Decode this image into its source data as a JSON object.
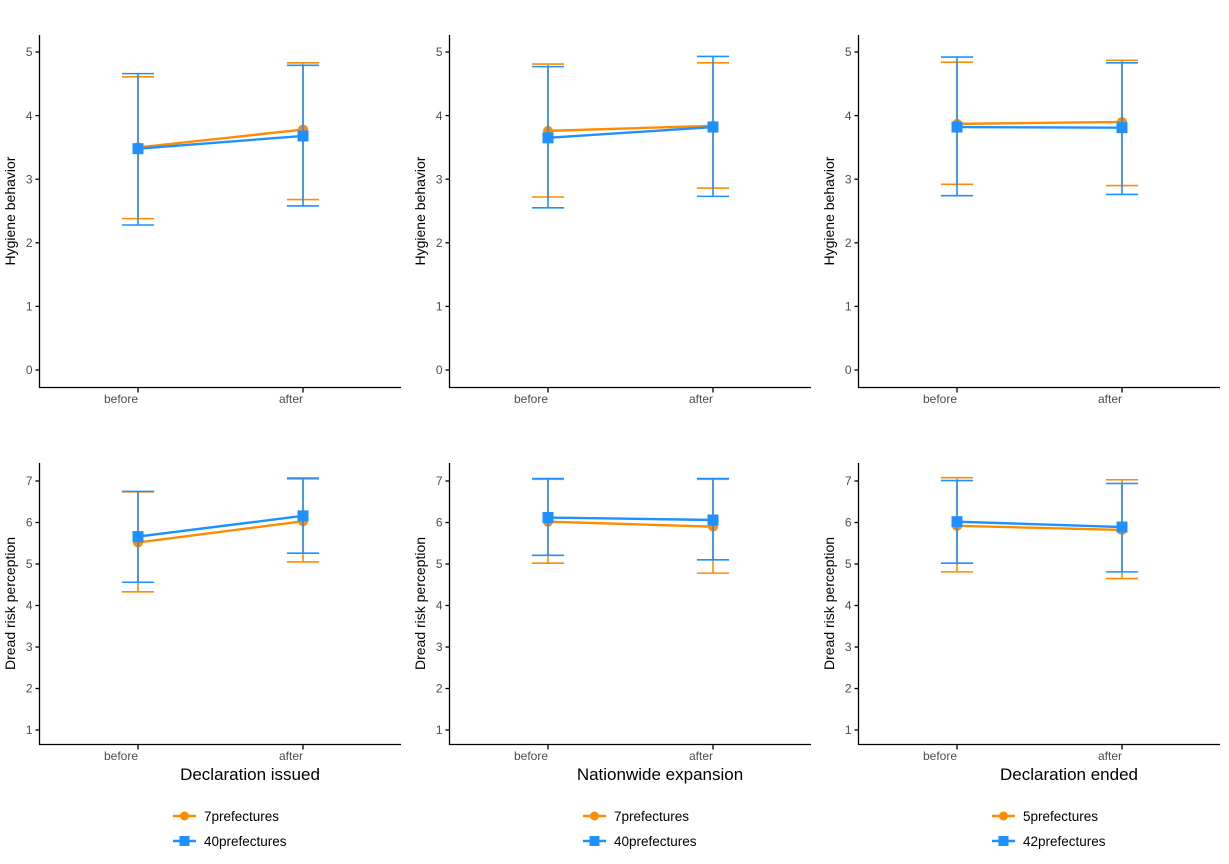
{
  "figure": {
    "background": "#FFFFFF",
    "axis_color": "#000000",
    "tick_label_color": "#4D4D4D",
    "series_colors": {
      "orange": "#FF8C00",
      "blue": "#1E90FF"
    }
  },
  "chart_data": [
    {
      "id": "hygiene-declaration-issued",
      "type": "line",
      "row": 0,
      "col": 0,
      "title": "",
      "xlabel": "",
      "ylabel": "Hygiene behavior",
      "categories": [
        "before",
        "after"
      ],
      "yticks": [
        0,
        1,
        2,
        3,
        4,
        5
      ],
      "ylim": [
        -0.27,
        5.27
      ],
      "grid": false,
      "error_bars": true,
      "show_legend": false,
      "series": [
        {
          "name": "7prefectures",
          "color": "#FF8C00",
          "marker": "circle",
          "values": [
            3.5,
            3.78
          ],
          "ci_low": [
            2.38,
            2.68
          ],
          "ci_high": [
            4.61,
            4.83
          ]
        },
        {
          "name": "40prefectures",
          "color": "#1E90FF",
          "marker": "square",
          "values": [
            3.48,
            3.68
          ],
          "ci_low": [
            2.28,
            2.58
          ],
          "ci_high": [
            4.66,
            4.79
          ]
        }
      ]
    },
    {
      "id": "hygiene-nationwide-expansion",
      "type": "line",
      "row": 0,
      "col": 1,
      "title": "",
      "xlabel": "",
      "ylabel": "Hygiene behavior",
      "categories": [
        "before",
        "after"
      ],
      "yticks": [
        0,
        1,
        2,
        3,
        4,
        5
      ],
      "ylim": [
        -0.27,
        5.27
      ],
      "grid": false,
      "error_bars": true,
      "show_legend": false,
      "series": [
        {
          "name": "7prefectures",
          "color": "#FF8C00",
          "marker": "circle",
          "values": [
            3.76,
            3.84
          ],
          "ci_low": [
            2.72,
            2.86
          ],
          "ci_high": [
            4.81,
            4.83
          ]
        },
        {
          "name": "40prefectures",
          "color": "#1E90FF",
          "marker": "square",
          "values": [
            3.65,
            3.82
          ],
          "ci_low": [
            2.55,
            2.73
          ],
          "ci_high": [
            4.77,
            4.93
          ]
        }
      ]
    },
    {
      "id": "hygiene-declaration-ended",
      "type": "line",
      "row": 0,
      "col": 2,
      "title": "",
      "xlabel": "",
      "ylabel": "Hygiene behavior",
      "categories": [
        "before",
        "after"
      ],
      "yticks": [
        0,
        1,
        2,
        3,
        4,
        5
      ],
      "ylim": [
        -0.27,
        5.27
      ],
      "grid": false,
      "error_bars": true,
      "show_legend": false,
      "series": [
        {
          "name": "5prefectures",
          "color": "#FF8C00",
          "marker": "circle",
          "values": [
            3.87,
            3.9
          ],
          "ci_low": [
            2.92,
            2.9
          ],
          "ci_high": [
            4.84,
            4.87
          ]
        },
        {
          "name": "42prefectures",
          "color": "#1E90FF",
          "marker": "square",
          "values": [
            3.82,
            3.81
          ],
          "ci_low": [
            2.74,
            2.76
          ],
          "ci_high": [
            4.92,
            4.83
          ]
        }
      ]
    },
    {
      "id": "dread-declaration-issued",
      "type": "line",
      "row": 1,
      "col": 0,
      "title": "",
      "xlabel": "Declaration issued",
      "ylabel": "Dread risk perception",
      "categories": [
        "before",
        "after"
      ],
      "yticks": [
        1,
        2,
        3,
        4,
        5,
        6,
        7
      ],
      "ylim": [
        0.66,
        7.43
      ],
      "grid": false,
      "error_bars": true,
      "show_legend": true,
      "legend_position": "bottom",
      "series": [
        {
          "name": "7prefectures",
          "color": "#FF8C00",
          "marker": "circle",
          "values": [
            5.52,
            6.03
          ],
          "ci_low": [
            4.33,
            5.05
          ],
          "ci_high": [
            6.74,
            7.05
          ]
        },
        {
          "name": "40prefectures",
          "color": "#1E90FF",
          "marker": "square",
          "values": [
            5.66,
            6.16
          ],
          "ci_low": [
            4.56,
            5.26
          ],
          "ci_high": [
            6.75,
            7.07
          ]
        }
      ]
    },
    {
      "id": "dread-nationwide-expansion",
      "type": "line",
      "row": 1,
      "col": 1,
      "title": "",
      "xlabel": "Nationwide expansion",
      "ylabel": "Dread risk perception",
      "categories": [
        "before",
        "after"
      ],
      "yticks": [
        1,
        2,
        3,
        4,
        5,
        6,
        7
      ],
      "ylim": [
        0.66,
        7.43
      ],
      "grid": false,
      "error_bars": true,
      "show_legend": true,
      "legend_position": "bottom",
      "series": [
        {
          "name": "7prefectures",
          "color": "#FF8C00",
          "marker": "circle",
          "values": [
            6.02,
            5.9
          ],
          "ci_low": [
            5.02,
            4.78
          ],
          "ci_high": [
            7.04,
            7.04
          ]
        },
        {
          "name": "40prefectures",
          "color": "#1E90FF",
          "marker": "square",
          "values": [
            6.12,
            6.06
          ],
          "ci_low": [
            5.21,
            5.1
          ],
          "ci_high": [
            7.06,
            7.06
          ]
        }
      ]
    },
    {
      "id": "dread-declaration-ended",
      "type": "line",
      "row": 1,
      "col": 2,
      "title": "",
      "xlabel": "Declaration ended",
      "ylabel": "Dread risk perception",
      "categories": [
        "before",
        "after"
      ],
      "yticks": [
        1,
        2,
        3,
        4,
        5,
        6,
        7
      ],
      "ylim": [
        0.66,
        7.43
      ],
      "grid": false,
      "error_bars": true,
      "show_legend": true,
      "legend_position": "bottom",
      "series": [
        {
          "name": "5prefectures",
          "color": "#FF8C00",
          "marker": "circle",
          "values": [
            5.92,
            5.82
          ],
          "ci_low": [
            4.81,
            4.65
          ],
          "ci_high": [
            7.08,
            7.03
          ]
        },
        {
          "name": "42prefectures",
          "color": "#1E90FF",
          "marker": "square",
          "values": [
            6.02,
            5.89
          ],
          "ci_low": [
            5.02,
            4.81
          ],
          "ci_high": [
            7.01,
            6.94
          ]
        }
      ]
    }
  ]
}
